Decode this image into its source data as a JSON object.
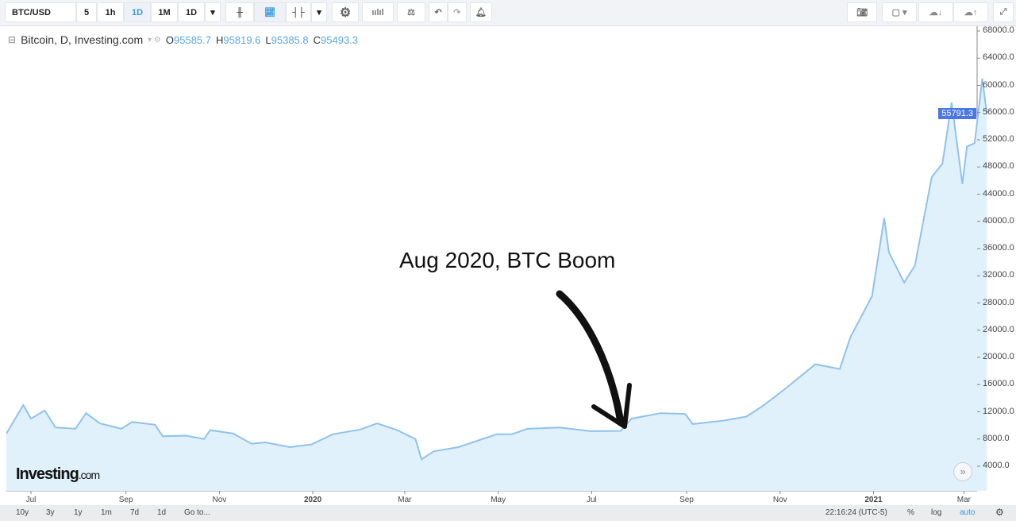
{
  "toolbar": {
    "symbol": "BTC/USD",
    "intervals": [
      "5",
      "1h",
      "1D",
      "1M",
      "1D"
    ],
    "active_interval": "1D"
  },
  "legend": {
    "title": "Bitcoin, D, Investing.com",
    "o_label": "O",
    "o": "95585.7",
    "h_label": "H",
    "h": "95819.6",
    "l_label": "L",
    "l": "95385.8",
    "c_label": "C",
    "c": "95493.3"
  },
  "annotation": "Aug 2020, BTC Boom",
  "logo": {
    "main": "Investing",
    "suffix": ".com"
  },
  "price_tag": "55791.3",
  "bottom": {
    "ranges": [
      "10y",
      "3y",
      "1y",
      "1m",
      "7d",
      "1d"
    ],
    "goto": "Go to...",
    "time": "22:16:24 (UTC-5)",
    "pct": "%",
    "log": "log",
    "auto": "auto"
  },
  "colors": {
    "line": "#8ec2f0",
    "fill": "#e1f1fb",
    "accent": "#4a77e3"
  },
  "chart_data": {
    "type": "area",
    "ylim": [
      4000,
      68000
    ],
    "y_ticks": [
      "68000.0",
      "64000.0",
      "60000.0",
      "56000.0",
      "52000.0",
      "48000.0",
      "44000.0",
      "40000.0",
      "36000.0",
      "32000.0",
      "28000.0",
      "24000.0",
      "20000.0",
      "16000.0",
      "12000.0",
      "8000.0",
      "4000.0"
    ],
    "x_ticks": [
      {
        "label": "Jul",
        "date": "2019-07-01"
      },
      {
        "label": "Sep",
        "date": "2019-09-01"
      },
      {
        "label": "Nov",
        "date": "2019-11-01"
      },
      {
        "label": "2020",
        "date": "2020-01-01"
      },
      {
        "label": "Mar",
        "date": "2020-03-01"
      },
      {
        "label": "May",
        "date": "2020-05-01"
      },
      {
        "label": "Jul",
        "date": "2020-07-01"
      },
      {
        "label": "Sep",
        "date": "2020-09-01"
      },
      {
        "label": "Nov",
        "date": "2020-11-01"
      },
      {
        "label": "2021",
        "date": "2021-01-01"
      },
      {
        "label": "Mar",
        "date": "2021-03-01"
      }
    ],
    "points": [
      [
        "2019-06-15",
        8800
      ],
      [
        "2019-06-26",
        13000
      ],
      [
        "2019-07-01",
        11000
      ],
      [
        "2019-07-10",
        12200
      ],
      [
        "2019-07-17",
        9700
      ],
      [
        "2019-07-30",
        9500
      ],
      [
        "2019-08-06",
        11800
      ],
      [
        "2019-08-15",
        10300
      ],
      [
        "2019-08-29",
        9500
      ],
      [
        "2019-09-05",
        10500
      ],
      [
        "2019-09-20",
        10100
      ],
      [
        "2019-09-25",
        8400
      ],
      [
        "2019-10-10",
        8500
      ],
      [
        "2019-10-22",
        8000
      ],
      [
        "2019-10-26",
        9300
      ],
      [
        "2019-11-10",
        8800
      ],
      [
        "2019-11-22",
        7300
      ],
      [
        "2019-12-01",
        7500
      ],
      [
        "2019-12-17",
        6800
      ],
      [
        "2019-12-31",
        7200
      ],
      [
        "2020-01-14",
        8700
      ],
      [
        "2020-02-01",
        9400
      ],
      [
        "2020-02-12",
        10300
      ],
      [
        "2020-02-25",
        9300
      ],
      [
        "2020-03-08",
        8000
      ],
      [
        "2020-03-12",
        5000
      ],
      [
        "2020-03-20",
        6200
      ],
      [
        "2020-04-05",
        6800
      ],
      [
        "2020-04-30",
        8700
      ],
      [
        "2020-05-10",
        8700
      ],
      [
        "2020-05-20",
        9500
      ],
      [
        "2020-06-10",
        9700
      ],
      [
        "2020-06-30",
        9150
      ],
      [
        "2020-07-20",
        9200
      ],
      [
        "2020-07-27",
        11000
      ],
      [
        "2020-08-15",
        11800
      ],
      [
        "2020-08-31",
        11700
      ],
      [
        "2020-09-05",
        10200
      ],
      [
        "2020-09-25",
        10700
      ],
      [
        "2020-10-10",
        11300
      ],
      [
        "2020-10-21",
        12900
      ],
      [
        "2020-11-05",
        15500
      ],
      [
        "2020-11-24",
        19000
      ],
      [
        "2020-12-10",
        18300
      ],
      [
        "2020-12-17",
        23000
      ],
      [
        "2020-12-31",
        29000
      ],
      [
        "2021-01-08",
        40500
      ],
      [
        "2021-01-11",
        35500
      ],
      [
        "2021-01-21",
        31000
      ],
      [
        "2021-01-28",
        33500
      ],
      [
        "2021-02-08",
        46500
      ],
      [
        "2021-02-15",
        48500
      ],
      [
        "2021-02-21",
        57500
      ],
      [
        "2021-02-28",
        45500
      ],
      [
        "2021-03-03",
        51000
      ],
      [
        "2021-03-08",
        51500
      ],
      [
        "2021-03-13",
        61000
      ],
      [
        "2021-03-16",
        55791.3
      ]
    ]
  }
}
